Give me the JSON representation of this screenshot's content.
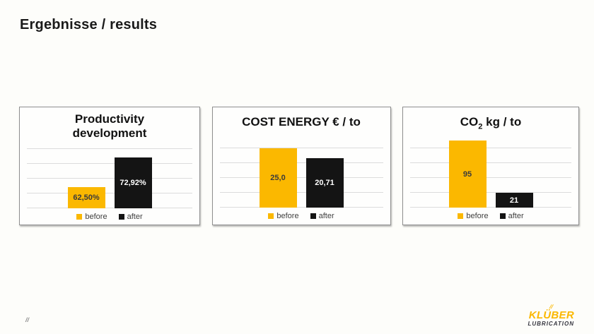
{
  "slide": {
    "title": "Ergebnisse / results",
    "page_marker": "//"
  },
  "colors": {
    "before_bar": "#FBB800",
    "after_bar": "#141414",
    "gridline": "#DCDCDC",
    "chart_border": "#8F8F8F",
    "label_on_before": "#3A3A3A",
    "label_on_after": "#FFFFFF",
    "legend_text": "#404040",
    "title_text": "#1A1A1A",
    "logo_yellow": "#FBB800",
    "logo_dark": "#35353F"
  },
  "chart_data": [
    {
      "type": "bar",
      "title": "Productivity development",
      "title_lines": [
        "Productivity",
        "development"
      ],
      "categories": [
        "before",
        "after"
      ],
      "values": [
        62.5,
        72.92
      ],
      "value_labels": [
        "62,50%",
        "72,92%"
      ],
      "ylim": [
        55,
        79
      ],
      "grid": true,
      "gridline_count": 5,
      "legend_position": "bottom"
    },
    {
      "type": "bar",
      "title": "COST ENERGY € / to",
      "categories": [
        "before",
        "after"
      ],
      "values": [
        25.0,
        20.71
      ],
      "value_labels": [
        "25,0",
        "20,71"
      ],
      "ylim": [
        0,
        31.25
      ],
      "grid": true,
      "gridline_count": 6,
      "legend_position": "bottom"
    },
    {
      "type": "bar",
      "title": "CO2 kg / to",
      "title_parts": [
        "CO",
        "2",
        " kg / to"
      ],
      "categories": [
        "before",
        "after"
      ],
      "values": [
        95,
        21
      ],
      "value_labels": [
        "95",
        "21"
      ],
      "ylim": [
        0,
        105
      ],
      "grid": true,
      "gridline_count": 6,
      "legend_position": "bottom"
    }
  ],
  "logo": {
    "slashes": "//",
    "name": "KLÜBER",
    "subtitle": "LUBRICATION"
  }
}
